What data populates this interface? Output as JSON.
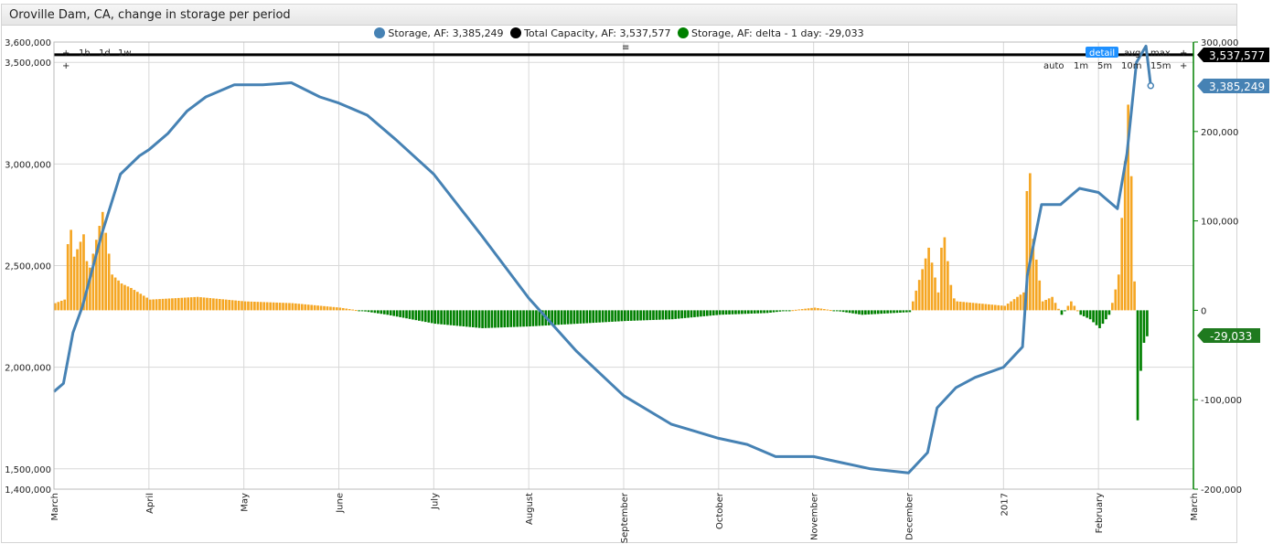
{
  "window": {
    "title": "Oroville Dam, CA, change in storage per period"
  },
  "legend": [
    {
      "label": "Storage, AF: 3,385,249",
      "color": "#4682b4"
    },
    {
      "label": "Total Capacity, AF: 3,537,577",
      "color": "#000000"
    },
    {
      "label": "Storage, AF: delta - 1 day: -29,033",
      "color": "#008000"
    }
  ],
  "controls": {
    "top_left": [
      "+",
      "1h",
      "1d",
      "1w"
    ],
    "top_left_plus2": "+",
    "center_toggle": "≡",
    "detail": "detail",
    "avg": "avg",
    "max": "max",
    "right_plus": "+",
    "intervals": [
      "auto",
      "1m",
      "5m",
      "10m",
      "15m"
    ],
    "right_plus2": "+"
  },
  "badges": {
    "capacity": "3,537,577",
    "storage": "3,385,249",
    "delta": "-29,033"
  },
  "colors": {
    "storage": "#4682b4",
    "capacity": "#000000",
    "delta_pos": "#f5a623",
    "delta_neg": "#008000",
    "right_axis": "#008000"
  },
  "chart_data": {
    "type": "line",
    "title": "Oroville Dam, CA, change in storage per period",
    "x_ticks": [
      "March",
      "April",
      "May",
      "June",
      "July",
      "August",
      "September",
      "October",
      "November",
      "December",
      "2017",
      "February",
      "March"
    ],
    "left_axis": {
      "ylim": [
        1400000,
        3600000
      ],
      "ticks": [
        "1,400,000",
        "1,500,000",
        "2,000,000",
        "2,500,000",
        "3,000,000",
        "3,500,000",
        "3,600,000"
      ]
    },
    "right_axis": {
      "ylim": [
        -200000,
        300000
      ],
      "ticks": [
        "-200,000",
        "-100,000",
        "0",
        "100,000",
        "200,000",
        "300,000"
      ]
    },
    "series": [
      {
        "name": "Storage, AF",
        "axis": "left",
        "x_month": [
          0,
          0.1,
          0.2,
          0.3,
          0.5,
          0.7,
          0.9,
          1.0,
          1.2,
          1.4,
          1.6,
          1.9,
          2.2,
          2.5,
          2.8,
          3.0,
          3.3,
          3.6,
          4.0,
          4.5,
          5.0,
          5.5,
          6.0,
          6.5,
          7.0,
          7.3,
          7.6,
          8.0,
          8.3,
          8.6,
          9.0,
          9.2,
          9.3,
          9.5,
          9.7,
          10.0,
          10.2,
          10.25,
          10.4,
          10.6,
          10.8,
          11.0,
          11.2,
          11.3,
          11.4,
          11.5,
          11.55
        ],
        "values": [
          1880000,
          1920000,
          2170000,
          2300000,
          2650000,
          2950000,
          3040000,
          3070000,
          3150000,
          3260000,
          3330000,
          3390000,
          3390000,
          3400000,
          3330000,
          3300000,
          3240000,
          3120000,
          2950000,
          2650000,
          2340000,
          2080000,
          1860000,
          1720000,
          1650000,
          1620000,
          1560000,
          1560000,
          1530000,
          1500000,
          1480000,
          1580000,
          1800000,
          1900000,
          1950000,
          2000000,
          2100000,
          2450000,
          2800000,
          2800000,
          2880000,
          2860000,
          2780000,
          3050000,
          3500000,
          3580000,
          3385249
        ]
      },
      {
        "name": "Total Capacity, AF",
        "axis": "left",
        "x_month": [
          0,
          12
        ],
        "values": [
          3537577,
          3537577
        ]
      },
      {
        "name": "Storage, AF: delta - 1 day",
        "axis": "right",
        "x_month": [
          0,
          0.1,
          0.15,
          0.2,
          0.3,
          0.35,
          0.5,
          0.55,
          0.6,
          0.7,
          0.8,
          1.0,
          1.5,
          2.0,
          2.5,
          3.0,
          3.5,
          4.0,
          4.5,
          5.0,
          5.5,
          6.0,
          6.5,
          7.0,
          7.5,
          8.0,
          8.5,
          9.0,
          9.2,
          9.3,
          9.35,
          9.45,
          9.5,
          9.7,
          10.0,
          10.2,
          10.25,
          10.3,
          10.4,
          10.5,
          10.6,
          10.7,
          10.8,
          10.9,
          11.0,
          11.1,
          11.15,
          11.2,
          11.3,
          11.35,
          11.4,
          11.45,
          11.5
        ],
        "values": [
          8000,
          12000,
          105000,
          60000,
          85000,
          40000,
          110000,
          75000,
          40000,
          30000,
          25000,
          12000,
          15000,
          10000,
          8000,
          3000,
          -5000,
          -15000,
          -20000,
          -18000,
          -15000,
          -12000,
          -10000,
          -5000,
          -3000,
          3000,
          -5000,
          -2000,
          70000,
          20000,
          95000,
          15000,
          10000,
          8000,
          5000,
          20000,
          190000,
          80000,
          10000,
          15000,
          -5000,
          10000,
          -5000,
          -10000,
          -20000,
          -5000,
          15000,
          40000,
          230000,
          110000,
          -123000,
          -40000,
          -29033
        ]
      }
    ],
    "legend_position": "top-center",
    "grid": true
  }
}
